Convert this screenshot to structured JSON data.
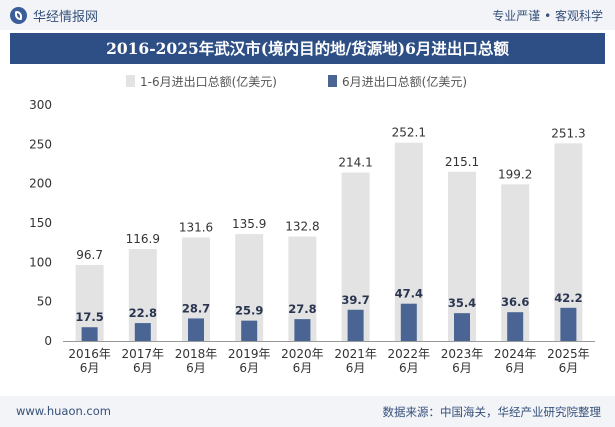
{
  "header": {
    "brand": "华经情报网",
    "tagline": "专业严谨 • 客观科学",
    "title": "2016-2025年武汉市(境内目的地/货源地)6月进出口总额"
  },
  "footer": {
    "site": "www.huaon.com",
    "source": "数据来源：中国海关，华经产业研究院整理"
  },
  "chart_data": {
    "type": "bar",
    "title": "2016-2025年武汉市(境内目的地/货源地)6月进出口总额",
    "categories": [
      [
        "2016年",
        "6月"
      ],
      [
        "2017年",
        "6月"
      ],
      [
        "2018年",
        "6月"
      ],
      [
        "2019年",
        "6月"
      ],
      [
        "2020年",
        "6月"
      ],
      [
        "2021年",
        "6月"
      ],
      [
        "2022年",
        "6月"
      ],
      [
        "2023年",
        "6月"
      ],
      [
        "2024年",
        "6月"
      ],
      [
        "2025年",
        "6月"
      ]
    ],
    "series": [
      {
        "name": "1-6月进出口总额(亿美元)",
        "values": [
          96.7,
          116.9,
          131.6,
          135.9,
          132.8,
          214.1,
          252.1,
          215.1,
          199.2,
          251.3
        ],
        "color": "#e3e3e3"
      },
      {
        "name": "6月进出口总额(亿美元)",
        "values": [
          17.5,
          22.8,
          28.7,
          25.9,
          27.8,
          39.7,
          47.4,
          35.4,
          36.6,
          42.2
        ],
        "color": "#4a6593"
      }
    ],
    "yticks": [
      0,
      50,
      100,
      150,
      200,
      250,
      300
    ],
    "ylim": [
      0,
      300
    ],
    "grid": false,
    "legend": "top-left",
    "overlapping_bars": true
  }
}
